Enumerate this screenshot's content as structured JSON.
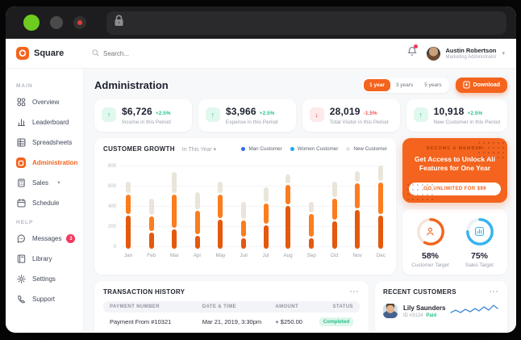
{
  "colors": {
    "accent": "#f4641e",
    "green": "#2bc48a",
    "red": "#ee5253",
    "badge_red": "#f5365c",
    "traffic_lights": [
      "#6ecb1f",
      "#4a4a4a",
      "#e23c3c"
    ],
    "bar_segments": [
      "#e3590e",
      "#fb7d1d",
      "#eae5da"
    ],
    "legend_dots": [
      "#2e6be6",
      "#1ea7f2",
      "#e4e4e4"
    ]
  },
  "brand": {
    "name": "Square"
  },
  "header": {
    "search_placeholder": "Search...",
    "user": {
      "name": "Austin Robertson",
      "role": "Marketing Administrator"
    }
  },
  "sidebar": {
    "sections": [
      {
        "label": "MAIN",
        "items": [
          {
            "label": "Overview",
            "icon": "overview-icon"
          },
          {
            "label": "Leaderboard",
            "icon": "leaderboard-icon"
          },
          {
            "label": "Spreadsheets",
            "icon": "spreadsheets-icon"
          },
          {
            "label": "Administration",
            "icon": "administration-icon",
            "active": true
          },
          {
            "label": "Sales",
            "icon": "sales-icon",
            "chevron": true
          },
          {
            "label": "Schedule",
            "icon": "schedule-icon"
          }
        ]
      },
      {
        "label": "HELP",
        "items": [
          {
            "label": "Messages",
            "icon": "messages-icon",
            "badge": "3"
          },
          {
            "label": "Library",
            "icon": "library-icon"
          },
          {
            "label": "Settings",
            "icon": "settings-icon"
          },
          {
            "label": "Support",
            "icon": "support-icon"
          }
        ]
      }
    ]
  },
  "page": {
    "title": "Administration",
    "range_buttons": [
      {
        "label": "1 year",
        "active": true
      },
      {
        "label": "3 years",
        "active": false
      },
      {
        "label": "5 years",
        "active": false
      }
    ],
    "download_label": "Download"
  },
  "stats": [
    {
      "value": "$6,726",
      "change": "+2.5%",
      "label": "Income in this Period",
      "direction": "up"
    },
    {
      "value": "$3,966",
      "change": "+2.5%",
      "label": "Expense in this Period",
      "direction": "up"
    },
    {
      "value": "28,019",
      "change": "-1.5%",
      "label": "Total Visitor in this Period",
      "direction": "down"
    },
    {
      "value": "10,918",
      "change": "+2.5%",
      "label": "New Customer in this Period",
      "direction": "up"
    }
  ],
  "chart": {
    "title": "CUSTOMER GROWTH",
    "filter": "In This Year",
    "legend": [
      {
        "label": "Man Customer",
        "color": "#2e6be6"
      },
      {
        "label": "Women Customer",
        "color": "#1ea7f2"
      },
      {
        "label": "New Customer",
        "color": "#e4e4e4"
      }
    ]
  },
  "chart_data": {
    "type": "bar",
    "stacked": true,
    "title": "CUSTOMER GROWTH",
    "categories": [
      "Jan",
      "Feb",
      "Mar",
      "Apr",
      "May",
      "Jun",
      "Jul",
      "Aug",
      "Sep",
      "Oct",
      "Nov",
      "Dec"
    ],
    "series": [
      {
        "name": "Man Customer",
        "color": "#e3590e",
        "values": [
          330,
          160,
          195,
          130,
          290,
          100,
          230,
          420,
          100,
          270,
          385,
          330
        ]
      },
      {
        "name": "Women Customer",
        "color": "#fb7d1d",
        "values": [
          190,
          140,
          325,
          230,
          230,
          160,
          200,
          195,
          220,
          210,
          245,
          315
        ]
      },
      {
        "name": "New Customer",
        "color": "#eae5da",
        "values": [
          110,
          160,
          210,
          170,
          110,
          170,
          140,
          85,
          105,
          155,
          100,
          155
        ]
      }
    ],
    "ylim": [
      0,
      800
    ],
    "yticks": [
      0,
      200,
      400,
      600,
      800
    ],
    "grid": "dotted-horizontal",
    "legend_position": "top-right"
  },
  "promo": {
    "eyebrow": "BECOME A MEMBER",
    "title": "Get Access to Unlock All Features for One Year",
    "button": "GO UNLIMITED FOR $99"
  },
  "targets": [
    {
      "percent": 58,
      "display": "58%",
      "label": "Customer Target",
      "color": "#f4641e",
      "track": "#f6e3d8",
      "icon": "user-icon"
    },
    {
      "percent": 75,
      "display": "75%",
      "label": "Sales Target",
      "color": "#35b3f1",
      "track": "#eaf0f5",
      "icon": "chart-icon"
    }
  ],
  "transactions": {
    "title": "TRANSACTION HISTORY",
    "columns": [
      "PAYMENT NUMBER",
      "DATE & TIME",
      "AMOUNT",
      "STATUS"
    ],
    "rows": [
      {
        "number": "Payment From #10321",
        "datetime": "Mar 21, 2019, 3:30pm",
        "amount": "+ $250.00",
        "status": "Completed"
      }
    ]
  },
  "recent_customers": {
    "title": "RECENT CUSTOMERS",
    "customers": [
      {
        "name": "Lily Saunders",
        "id": "ID #3124",
        "status": "Paid"
      }
    ]
  }
}
